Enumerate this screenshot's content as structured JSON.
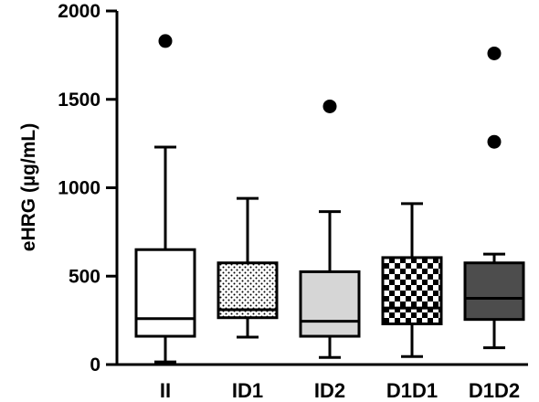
{
  "chart_data": {
    "type": "box",
    "categories": [
      "II",
      "ID1",
      "ID2",
      "D1D1",
      "D1D2"
    ],
    "ylabel": "eHRG (µg/mL)",
    "ylim": [
      0,
      2000
    ],
    "yticks": [
      "0",
      "500",
      "1000",
      "1500",
      "2000"
    ],
    "grid": false,
    "series": [
      {
        "category": "II",
        "whisker_low": 15,
        "q1": 160,
        "median": 260,
        "q3": 650,
        "whisker_high": 1230,
        "outliers": [
          1830
        ],
        "fill": "#ffffff",
        "pattern": "none"
      },
      {
        "category": "ID1",
        "whisker_low": 155,
        "q1": 265,
        "median": 310,
        "q3": 575,
        "whisker_high": 940,
        "outliers": [],
        "fill": "#ffffff",
        "pattern": "dots"
      },
      {
        "category": "ID2",
        "whisker_low": 40,
        "q1": 160,
        "median": 245,
        "q3": 525,
        "whisker_high": 865,
        "outliers": [
          1460
        ],
        "fill": "#d6d6d6",
        "pattern": "none"
      },
      {
        "category": "D1D1",
        "whisker_low": 45,
        "q1": 230,
        "median": 320,
        "q3": 605,
        "whisker_high": 910,
        "outliers": [],
        "fill": "#ffffff",
        "pattern": "checker"
      },
      {
        "category": "D1D2",
        "whisker_low": 95,
        "q1": 255,
        "median": 375,
        "q3": 575,
        "whisker_high": 625,
        "outliers": [
          1760,
          1260
        ],
        "fill": "#4d4d4d",
        "pattern": "none"
      }
    ]
  }
}
